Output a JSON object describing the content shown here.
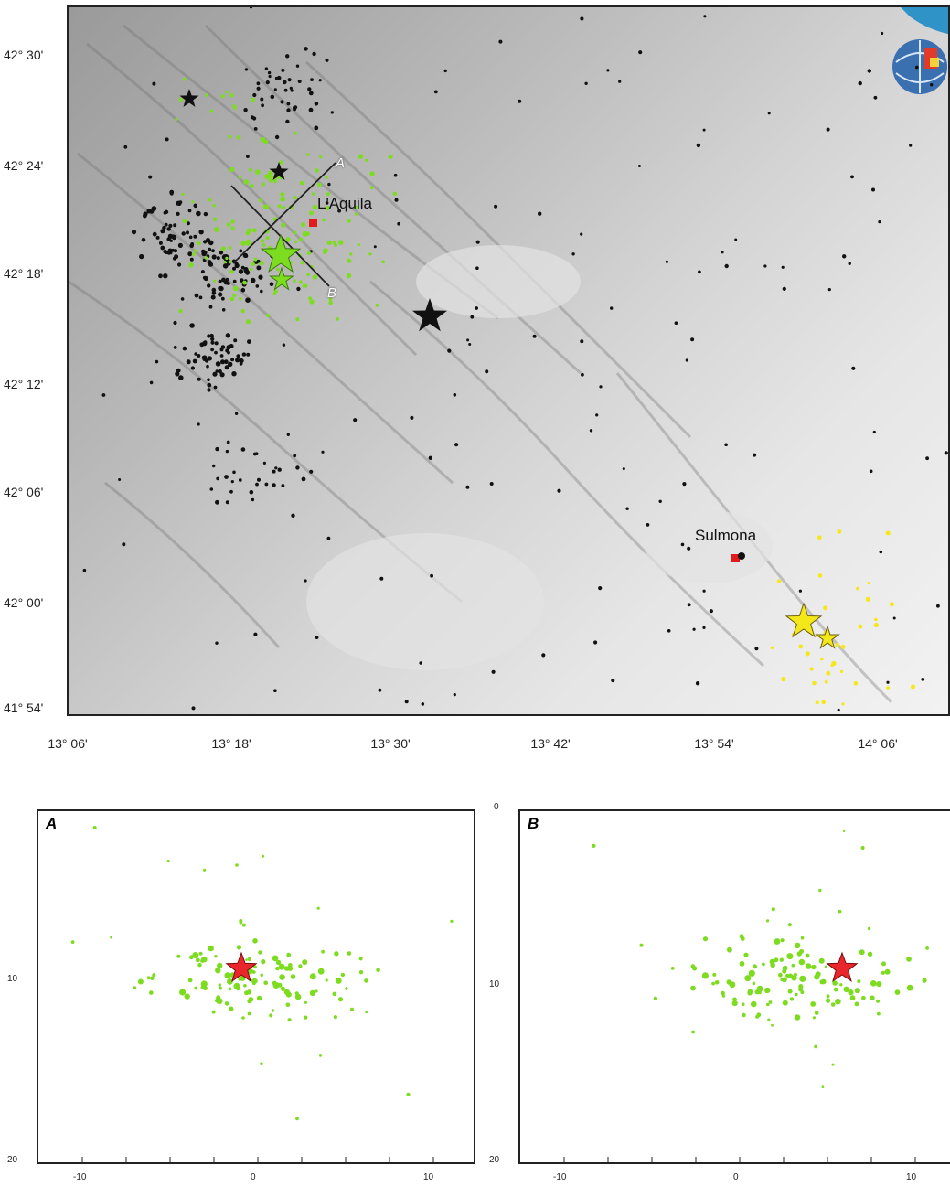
{
  "map": {
    "lat_labels": [
      "42° 30'",
      "42° 24'",
      "42° 18'",
      "42° 12'",
      "42° 06'",
      "42° 00'",
      "41° 54'"
    ],
    "lon_labels": [
      "13° 06'",
      "13° 18'",
      "13° 30'",
      "13° 42'",
      "13° 54'",
      "14° 06'"
    ],
    "towns": {
      "laquila": "L'Aquila",
      "sulmona": "Sulmona"
    },
    "section_a": "A",
    "section_b": "B",
    "colors": {
      "laquila_events": "#7ddc1f",
      "sulmona_events": "#f4e81a",
      "background_events": "#111111",
      "town_marker": "#e11b1b"
    }
  },
  "cross_sections": {
    "a": {
      "letter": "A",
      "y_ticks": [
        "10",
        "20"
      ],
      "x_ticks": [
        "-10",
        "0",
        "10"
      ],
      "star_color": "#e8262c"
    },
    "b": {
      "letter": "B",
      "y_ticks": [
        "0",
        "10",
        "20"
      ],
      "x_ticks": [
        "-10",
        "0",
        "10"
      ],
      "star_color": "#e8262c"
    }
  }
}
